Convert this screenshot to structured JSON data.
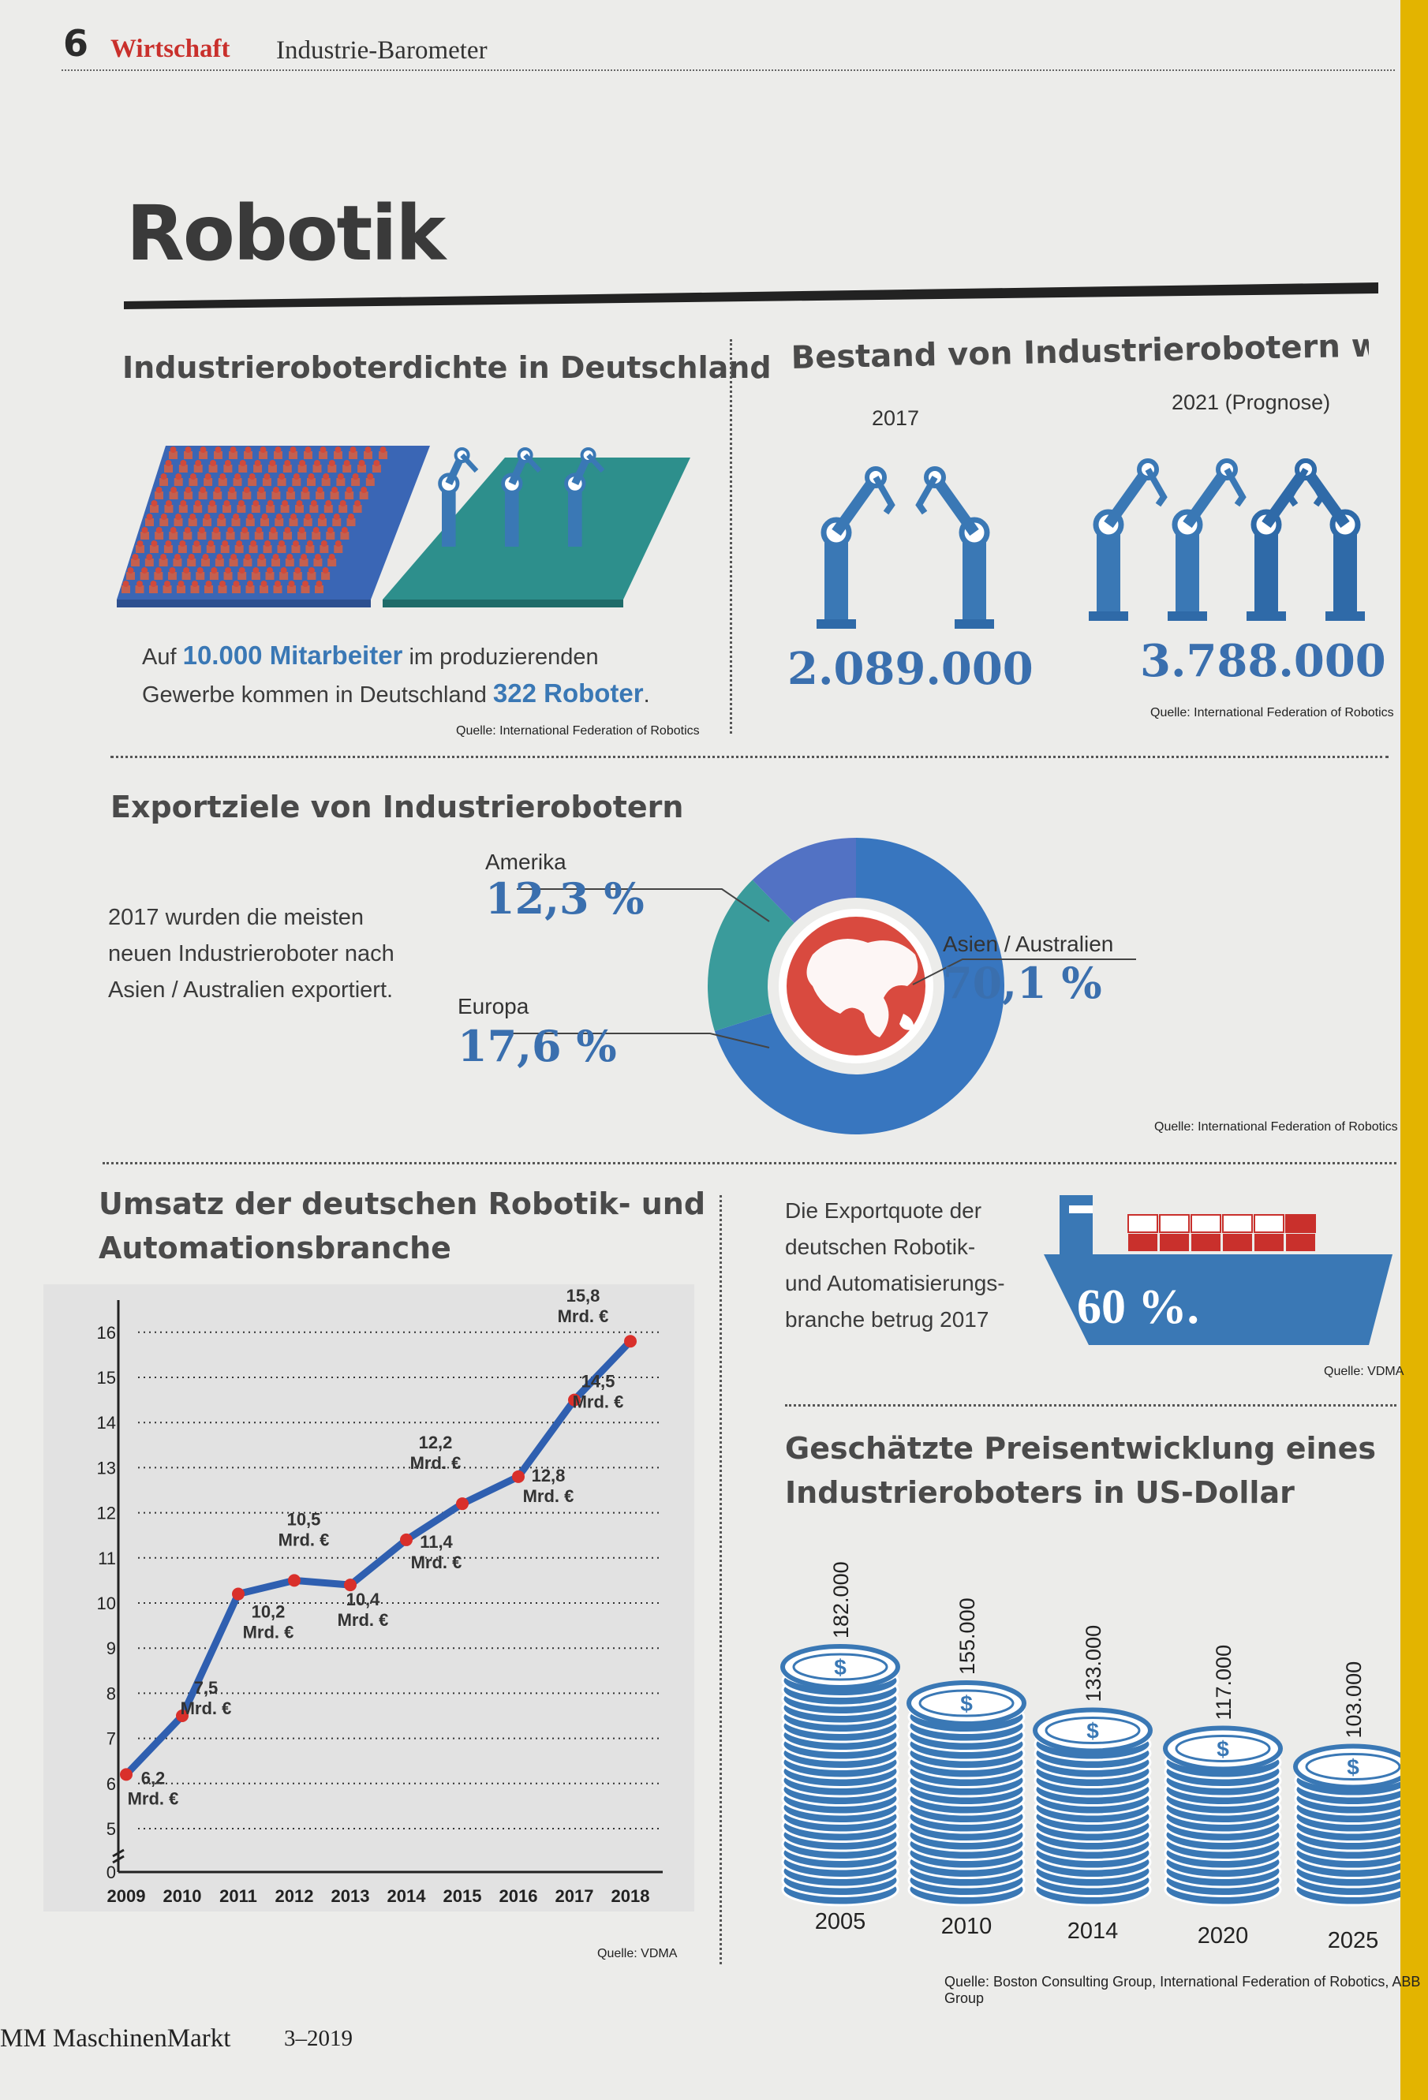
{
  "header": {
    "page_number": "6",
    "section": "Wirtschaft",
    "subsection": "Industrie-Barometer"
  },
  "title": "Robotik",
  "density": {
    "heading": "Industrieroboterdichte in Deutschland",
    "text_prefix": "Auf",
    "highlight_1": "10.000 Mitarbeiter",
    "text_mid_1": "im produzierenden",
    "text_mid_2": "Gewerbe kommen in Deutschland",
    "highlight_2": "322 Roboter",
    "text_suffix": ".",
    "source": "Quelle: International Federation of Robotics"
  },
  "stock": {
    "heading": "Bestand von Industrierobotern weltweit",
    "year_a": "2017",
    "value_a": "2.089.000",
    "year_b": "2021 (Prognose)",
    "value_b": "3.788.000",
    "source": "Quelle: International Federation of Robotics"
  },
  "export_targets": {
    "heading": "Exportziele von Industrierobotern",
    "text_1": "2017 wurden die meisten",
    "text_2": "neuen Industrieroboter nach",
    "text_3": "Asien / Australien exportiert.",
    "source": "Quelle: International Federation of Robotics"
  },
  "revenue": {
    "heading_1": "Umsatz der deutschen Robotik- und",
    "heading_2": "Automationsbranche",
    "source": "Quelle: VDMA"
  },
  "export_quota": {
    "text_1": "Die Exportquote der",
    "text_2": "deutschen Robotik-",
    "text_3": "und Automatisierungs-",
    "text_4": "branche betrug 2017",
    "value": "60 %.",
    "source": "Quelle: VDMA"
  },
  "price": {
    "heading_1": "Geschätzte Preisentwicklung eines",
    "heading_2": "Industrieroboters in US-Dollar",
    "coin_symbol": "$",
    "source": "Quelle: Boston Consulting Group, International Federation of Robotics, ABB Group"
  },
  "footer": {
    "magazine": "MM MaschinenMarkt",
    "issue": "3–2019"
  },
  "colors": {
    "accent_red": "#c9302c",
    "blue": "#3a78b5",
    "dark_blue": "#2f6aa8",
    "teal": "#2d8f8c",
    "asia_blue": "#3876bf",
    "america_blue": "#5272c4",
    "europe_teal": "#3a9b9b"
  },
  "chart_data": [
    {
      "type": "pie",
      "title": "Exportziele von Industrierobotern",
      "series": [
        {
          "name": "Asien / Australien",
          "value": 70.1,
          "label": "70,1 %"
        },
        {
          "name": "Europa",
          "value": 17.6,
          "label": "17,6 %"
        },
        {
          "name": "Amerika",
          "value": 12.3,
          "label": "12,3 %"
        }
      ]
    },
    {
      "type": "line",
      "title": "Umsatz der deutschen Robotik- und Automationsbranche",
      "x": [
        "2009",
        "2010",
        "2011",
        "2012",
        "2013",
        "2014",
        "2015",
        "2016",
        "2017",
        "2018"
      ],
      "values": [
        6.2,
        7.5,
        10.2,
        10.5,
        10.4,
        11.4,
        12.2,
        12.8,
        14.5,
        15.8
      ],
      "data_labels": [
        "6,2|Mrd. €",
        "7,5|Mrd. €",
        "10,2|Mrd. €",
        "10,5|Mrd. €",
        "10,4|Mrd. €",
        "11,4|Mrd. €",
        "12,2|Mrd. €",
        "12,8|Mrd. €",
        "14,5|Mrd. €",
        "15,8|Mrd. €"
      ],
      "y_ticks": [
        "0",
        "5",
        "6",
        "7",
        "8",
        "9",
        "10",
        "11",
        "12",
        "13",
        "14",
        "15",
        "16"
      ],
      "ylim": [
        4.5,
        16
      ],
      "y_axis_break": true,
      "grid": true
    },
    {
      "type": "bar",
      "title": "Geschätzte Preisentwicklung eines Industrieroboters in US-Dollar",
      "categories": [
        "2005",
        "2010",
        "2014",
        "2020",
        "2025"
      ],
      "values": [
        182000,
        155000,
        133000,
        117000,
        103000
      ],
      "value_labels": [
        "182.000",
        "155.000",
        "133.000",
        "117.000",
        "103.000"
      ]
    }
  ]
}
